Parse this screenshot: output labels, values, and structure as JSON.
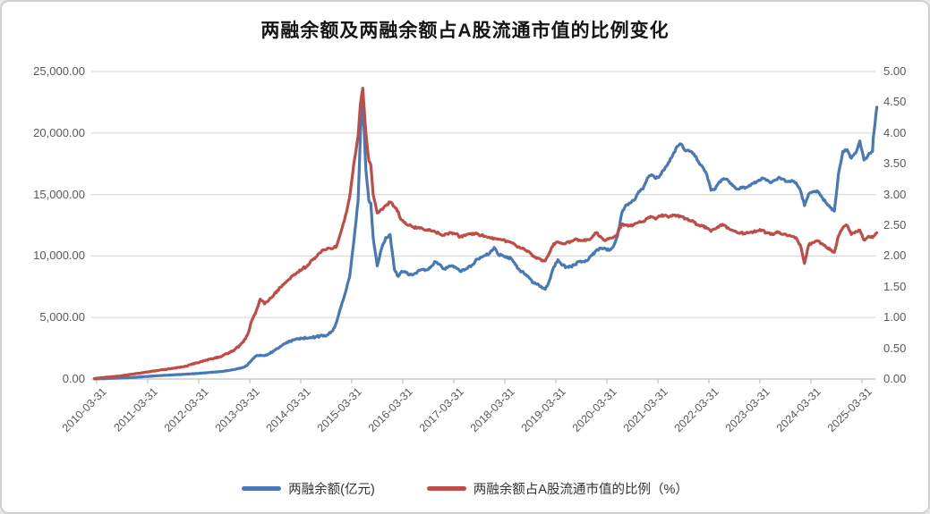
{
  "title": "两融余额及两融余额占A股流通市值的比例变化",
  "left_axis": {
    "ticks": [
      "25,000.00",
      "20,000.00",
      "15,000.00",
      "10,000.00",
      "5,000.00",
      "0.00"
    ]
  },
  "right_axis": {
    "ticks": [
      "5.00",
      "4.50",
      "4.00",
      "3.50",
      "3.00",
      "2.50",
      "2.00",
      "1.50",
      "1.00",
      "0.50",
      "0.00"
    ]
  },
  "x_axis": {
    "labels": [
      "2010-03-31",
      "2011-03-31",
      "2012-03-31",
      "2013-03-31",
      "2014-03-31",
      "2015-03-31",
      "2016-03-31",
      "2017-03-31",
      "2018-03-31",
      "2019-03-31",
      "2020-03-31",
      "2021-03-31",
      "2022-03-31",
      "2023-03-31",
      "2024-03-31",
      "2025-03-31"
    ]
  },
  "legend": {
    "items": [
      {
        "label": "两融余额(亿元)",
        "color": "#4878b6"
      },
      {
        "label": "两融余额占A股流通市值的比例（%）",
        "color": "#bf4c47"
      }
    ]
  },
  "colors": {
    "grid": "#d9d9d9",
    "axis": "#bfbfbf",
    "tick_text": "#595959",
    "blue": "#4878b6",
    "red": "#bf4c47"
  },
  "chart_data": {
    "type": "line",
    "title": "两融余额及两融余额占A股流通市值的比例变化",
    "xlabel": "",
    "ylabel_left": "两融余额(亿元)",
    "ylabel_right": "两融余额占A股流通市值的比例（%）",
    "left_ylim": [
      0,
      25000
    ],
    "right_ylim": [
      0,
      5
    ],
    "grid": true,
    "legend_position": "bottom",
    "x": [
      "2010-03",
      "2010-06",
      "2010-09",
      "2010-12",
      "2011-03",
      "2011-06",
      "2011-09",
      "2011-12",
      "2012-03",
      "2012-06",
      "2012-09",
      "2012-12",
      "2013-02",
      "2013-03",
      "2013-04",
      "2013-05",
      "2013-06",
      "2013-07",
      "2013-08",
      "2013-09",
      "2013-10",
      "2013-11",
      "2013-12",
      "2014-01",
      "2014-02",
      "2014-03",
      "2014-04",
      "2014-05",
      "2014-06",
      "2014-07",
      "2014-08",
      "2014-09",
      "2014-10",
      "2014-11",
      "2014-12",
      "2015-01",
      "2015-02",
      "2015-03",
      "2015-04",
      "2015-05",
      "2015-06-01",
      "2015-06-18",
      "2015-07-10",
      "2015-07-31",
      "2015-08-15",
      "2015-09-01",
      "2015-09-30",
      "2015-10-31",
      "2015-11-30",
      "2015-12-31",
      "2016-01-15",
      "2016-01-31",
      "2016-02-29",
      "2016-03",
      "2016-04",
      "2016-05",
      "2016-06",
      "2016-07",
      "2016-08",
      "2016-09",
      "2016-10",
      "2016-11",
      "2016-12",
      "2017-01",
      "2017-02",
      "2017-03",
      "2017-04",
      "2017-05",
      "2017-06",
      "2017-07",
      "2017-08",
      "2017-09",
      "2017-10",
      "2017-11",
      "2017-12",
      "2018-01",
      "2018-02",
      "2018-03",
      "2018-04",
      "2018-05",
      "2018-06",
      "2018-07",
      "2018-08",
      "2018-09",
      "2018-10",
      "2018-11",
      "2018-12",
      "2019-01",
      "2019-02",
      "2019-03",
      "2019-04",
      "2019-05",
      "2019-06",
      "2019-07",
      "2019-08",
      "2019-09",
      "2019-10",
      "2019-11",
      "2019-12",
      "2020-01",
      "2020-02",
      "2020-03",
      "2020-04",
      "2020-05",
      "2020-06",
      "2020-07",
      "2020-08",
      "2020-09",
      "2020-10",
      "2020-11",
      "2020-12",
      "2021-01",
      "2021-02",
      "2021-03",
      "2021-04",
      "2021-05",
      "2021-06",
      "2021-07",
      "2021-08",
      "2021-09",
      "2021-10",
      "2021-11",
      "2021-12",
      "2022-01",
      "2022-02",
      "2022-03",
      "2022-04",
      "2022-05",
      "2022-06",
      "2022-07",
      "2022-08",
      "2022-09",
      "2022-10",
      "2022-11",
      "2022-12",
      "2023-01",
      "2023-02",
      "2023-03",
      "2023-04",
      "2023-05",
      "2023-06",
      "2023-07",
      "2023-08",
      "2023-09",
      "2023-10",
      "2023-11",
      "2023-12",
      "2024-01",
      "2024-02",
      "2024-03",
      "2024-04",
      "2024-05",
      "2024-06",
      "2024-07",
      "2024-08",
      "2024-09",
      "2024-10",
      "2024-11",
      "2024-12",
      "2025-01",
      "2025-02",
      "2025-03",
      "2025-04",
      "2025-05",
      "2025-06",
      "2025-06-20",
      "2025-07-15"
    ],
    "series": [
      {
        "name": "两融余额(亿元)",
        "yaxis": "left",
        "color": "#4878b6",
        "values": [
          5,
          40,
          80,
          130,
          200,
          270,
          330,
          382,
          450,
          530,
          620,
          780,
          950,
          1150,
          1550,
          1870,
          1950,
          1900,
          2050,
          2250,
          2480,
          2700,
          2900,
          3100,
          3180,
          3280,
          3320,
          3300,
          3350,
          3420,
          3480,
          3550,
          3620,
          3900,
          4700,
          5900,
          7000,
          8300,
          11200,
          14500,
          20000,
          22700,
          17000,
          14500,
          14300,
          11500,
          9200,
          10600,
          11500,
          11750,
          10400,
          8900,
          8350,
          8650,
          8750,
          8450,
          8500,
          8750,
          8900,
          8870,
          9050,
          9550,
          9350,
          8950,
          9050,
          9200,
          9050,
          8750,
          8850,
          9150,
          9300,
          9750,
          9900,
          10050,
          10250,
          10700,
          10100,
          10050,
          9850,
          9800,
          9300,
          8850,
          8600,
          8350,
          7850,
          7700,
          7550,
          7300,
          8000,
          9100,
          9700,
          9250,
          9100,
          9150,
          9300,
          9550,
          9550,
          9650,
          10050,
          10450,
          10650,
          10650,
          10450,
          10750,
          11600,
          13450,
          14150,
          14300,
          14550,
          15250,
          15450,
          16300,
          16600,
          16300,
          16550,
          17000,
          17600,
          18200,
          18900,
          19100,
          18550,
          18500,
          18300,
          17700,
          17250,
          16650,
          15350,
          15450,
          16050,
          16300,
          16150,
          15750,
          15450,
          15600,
          15500,
          15750,
          15900,
          16100,
          16350,
          16150,
          15950,
          16150,
          16400,
          16250,
          16050,
          16150,
          15950,
          15350,
          14100,
          15050,
          15250,
          15300,
          14850,
          14350,
          13950,
          13650,
          16700,
          18500,
          18650,
          17950,
          18350,
          19350,
          17800,
          18250,
          18500,
          19600,
          22100
        ]
      },
      {
        "name": "两融余额占A股流通市值的比例（%）",
        "yaxis": "right",
        "color": "#bf4c47",
        "values": [
          0.01,
          0.03,
          0.05,
          0.08,
          0.11,
          0.14,
          0.17,
          0.2,
          0.26,
          0.32,
          0.37,
          0.48,
          0.6,
          0.72,
          0.95,
          1.1,
          1.3,
          1.22,
          1.28,
          1.35,
          1.44,
          1.5,
          1.57,
          1.63,
          1.7,
          1.74,
          1.8,
          1.83,
          1.93,
          1.98,
          2.05,
          2.1,
          2.13,
          2.12,
          2.17,
          2.4,
          2.65,
          2.95,
          3.5,
          3.95,
          4.48,
          4.73,
          4.0,
          3.55,
          3.48,
          3.0,
          2.7,
          2.76,
          2.82,
          2.88,
          2.86,
          2.8,
          2.72,
          2.6,
          2.55,
          2.5,
          2.47,
          2.46,
          2.45,
          2.42,
          2.42,
          2.4,
          2.37,
          2.34,
          2.36,
          2.38,
          2.36,
          2.31,
          2.34,
          2.36,
          2.37,
          2.36,
          2.34,
          2.32,
          2.3,
          2.29,
          2.27,
          2.26,
          2.24,
          2.22,
          2.18,
          2.14,
          2.12,
          2.08,
          2.0,
          1.96,
          1.94,
          1.92,
          2.05,
          2.2,
          2.23,
          2.2,
          2.22,
          2.24,
          2.27,
          2.26,
          2.25,
          2.27,
          2.3,
          2.38,
          2.32,
          2.25,
          2.28,
          2.3,
          2.36,
          2.52,
          2.5,
          2.49,
          2.52,
          2.55,
          2.56,
          2.61,
          2.64,
          2.6,
          2.65,
          2.66,
          2.63,
          2.67,
          2.66,
          2.64,
          2.61,
          2.58,
          2.55,
          2.5,
          2.49,
          2.45,
          2.4,
          2.44,
          2.49,
          2.5,
          2.46,
          2.42,
          2.39,
          2.38,
          2.36,
          2.38,
          2.39,
          2.41,
          2.42,
          2.38,
          2.35,
          2.37,
          2.39,
          2.35,
          2.33,
          2.32,
          2.3,
          2.18,
          1.88,
          2.18,
          2.22,
          2.25,
          2.2,
          2.15,
          2.1,
          2.06,
          2.33,
          2.46,
          2.5,
          2.35,
          2.4,
          2.42,
          2.26,
          2.32,
          2.3,
          2.32,
          2.38
        ]
      }
    ]
  }
}
